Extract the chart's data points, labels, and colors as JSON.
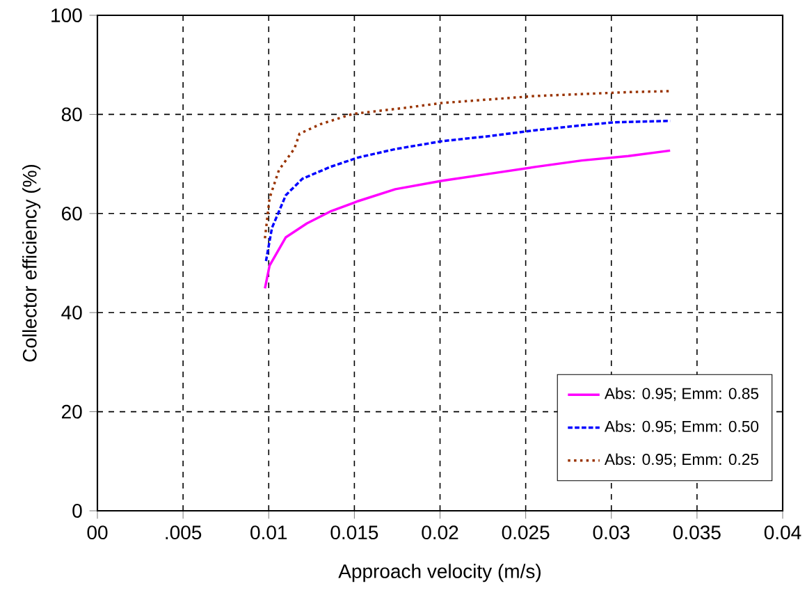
{
  "chart_data": {
    "type": "line",
    "xlabel": "Approach velocity (m/s)",
    "ylabel": "Collector efficiency (%)",
    "xlim": [
      0,
      0.04
    ],
    "ylim": [
      0,
      100
    ],
    "xticks": [
      {
        "value": 0,
        "label": "00"
      },
      {
        "value": 0.005,
        "label": ".005"
      },
      0.01,
      0.015,
      0.02,
      0.025,
      0.03,
      0.035,
      0.04
    ],
    "yticks": [
      0,
      20,
      40,
      60,
      80,
      100
    ],
    "grid": true,
    "legend": "bottom right",
    "series": [
      {
        "name": "Abs: 0.95; Emm: 0.85",
        "color": "#ff00ff",
        "line_style": "solid",
        "x": [
          0.00978,
          0.01005,
          0.011,
          0.01223,
          0.01359,
          0.01522,
          0.01739,
          0.02012,
          0.02283,
          0.02555,
          0.02827,
          0.03099,
          0.03343
        ],
        "values": [
          44.9,
          49.5,
          55.2,
          58.0,
          60.4,
          62.5,
          64.9,
          66.6,
          68.0,
          69.4,
          70.7,
          71.6,
          72.7
        ]
      },
      {
        "name": "Abs: 0.95; Emm: 0.50",
        "color": "#0000ff",
        "line_style": "dashed",
        "x": [
          0.00984,
          0.01019,
          0.011,
          0.01196,
          0.01359,
          0.01522,
          0.01739,
          0.02012,
          0.02283,
          0.02555,
          0.02827,
          0.03017,
          0.03343
        ],
        "values": [
          50.4,
          57.1,
          63.7,
          67.0,
          69.4,
          71.3,
          73.0,
          74.6,
          75.6,
          76.8,
          77.8,
          78.4,
          78.7
        ]
      },
      {
        "name": "Abs: 0.95; Emm: 0.25",
        "color": "#993300",
        "line_style": "dotted",
        "x": [
          0.00978,
          0.01005,
          0.0106,
          0.0115,
          0.0118,
          0.013,
          0.0149,
          0.0179,
          0.0201,
          0.0255,
          0.031,
          0.0334
        ],
        "values": [
          55.0,
          63.1,
          68.8,
          73.1,
          76.1,
          78.0,
          80.1,
          81.3,
          82.3,
          83.7,
          84.5,
          84.7
        ]
      }
    ]
  }
}
